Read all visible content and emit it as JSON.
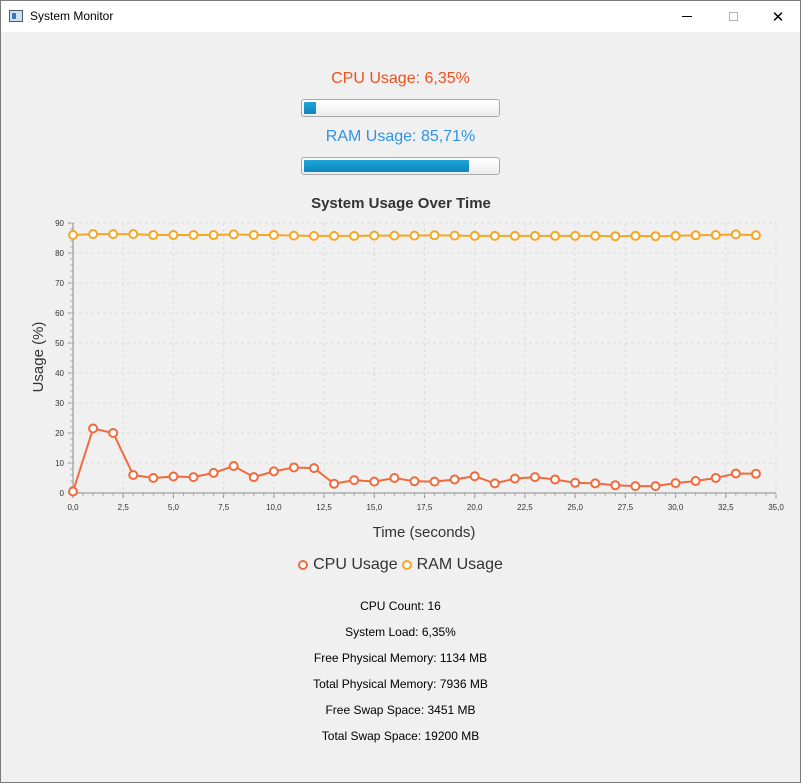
{
  "window": {
    "title": "System Monitor"
  },
  "titlebar": {
    "minimize_icon": "minimize-icon",
    "maximize_icon": "maximize-icon",
    "close_icon": "close-icon",
    "close_glyph": "✕"
  },
  "cpu": {
    "label": "CPU Usage: 6,35%",
    "progress": 0.0635,
    "color": "#f0501e"
  },
  "ram": {
    "label": "RAM Usage: 85,71%",
    "progress": 0.8571,
    "color": "#2e95e6"
  },
  "chart_data": {
    "type": "line",
    "title": "System Usage Over Time",
    "xlabel": "Time (seconds)",
    "ylabel": "Usage (%)",
    "xlim": [
      0,
      35
    ],
    "ylim": [
      0,
      90
    ],
    "xticks": [
      0,
      2.5,
      5,
      7.5,
      10,
      12.5,
      15,
      17.5,
      20,
      22.5,
      25,
      27.5,
      30,
      32.5,
      35
    ],
    "xtick_labels": [
      "0,0",
      "2,5",
      "5,0",
      "7,5",
      "10,0",
      "12,5",
      "15,0",
      "17,5",
      "20,0",
      "22,5",
      "25,0",
      "27,5",
      "30,0",
      "32,5",
      "35,0"
    ],
    "yticks": [
      0,
      10,
      20,
      30,
      40,
      50,
      60,
      70,
      80,
      90
    ],
    "ytick_labels": [
      "0",
      "10",
      "20",
      "30",
      "40",
      "50",
      "60",
      "70",
      "80",
      "90"
    ],
    "grid": true,
    "legend": "bottom",
    "x": [
      0,
      1,
      2,
      3,
      4,
      5,
      6,
      7,
      8,
      9,
      10,
      11,
      12,
      13,
      14,
      15,
      16,
      17,
      18,
      19,
      20,
      21,
      22,
      23,
      24,
      25,
      26,
      27,
      28,
      29,
      30,
      31,
      32,
      33,
      34
    ],
    "series": [
      {
        "name": "CPU Usage",
        "color": "#f06a3c",
        "values": [
          0.5,
          21.5,
          20.0,
          6.0,
          5.0,
          5.5,
          5.3,
          6.7,
          9.0,
          5.3,
          7.2,
          8.5,
          8.3,
          3.1,
          4.3,
          3.8,
          5.0,
          3.9,
          3.8,
          4.5,
          5.6,
          3.2,
          4.8,
          5.3,
          4.5,
          3.4,
          3.2,
          2.6,
          2.3,
          2.3,
          3.3,
          4.0,
          5.0,
          6.5,
          6.4
        ]
      },
      {
        "name": "RAM Usage",
        "color": "#f5a623",
        "values": [
          86.0,
          86.3,
          86.3,
          86.3,
          86.0,
          86.0,
          86.0,
          86.0,
          86.2,
          86.0,
          86.0,
          85.8,
          85.7,
          85.7,
          85.7,
          85.8,
          85.8,
          85.8,
          85.9,
          85.8,
          85.7,
          85.7,
          85.7,
          85.7,
          85.7,
          85.7,
          85.7,
          85.6,
          85.7,
          85.6,
          85.7,
          85.9,
          86.0,
          86.2,
          85.9
        ]
      }
    ]
  },
  "info": {
    "cpu_count": "CPU Count: 16",
    "system_load": "System Load: 6,35%",
    "free_physical": "Free Physical Memory: 1134 MB",
    "total_physical": "Total Physical Memory: 7936 MB",
    "free_swap": "Free Swap Space: 3451 MB",
    "total_swap": "Total Swap Space: 19200 MB"
  }
}
